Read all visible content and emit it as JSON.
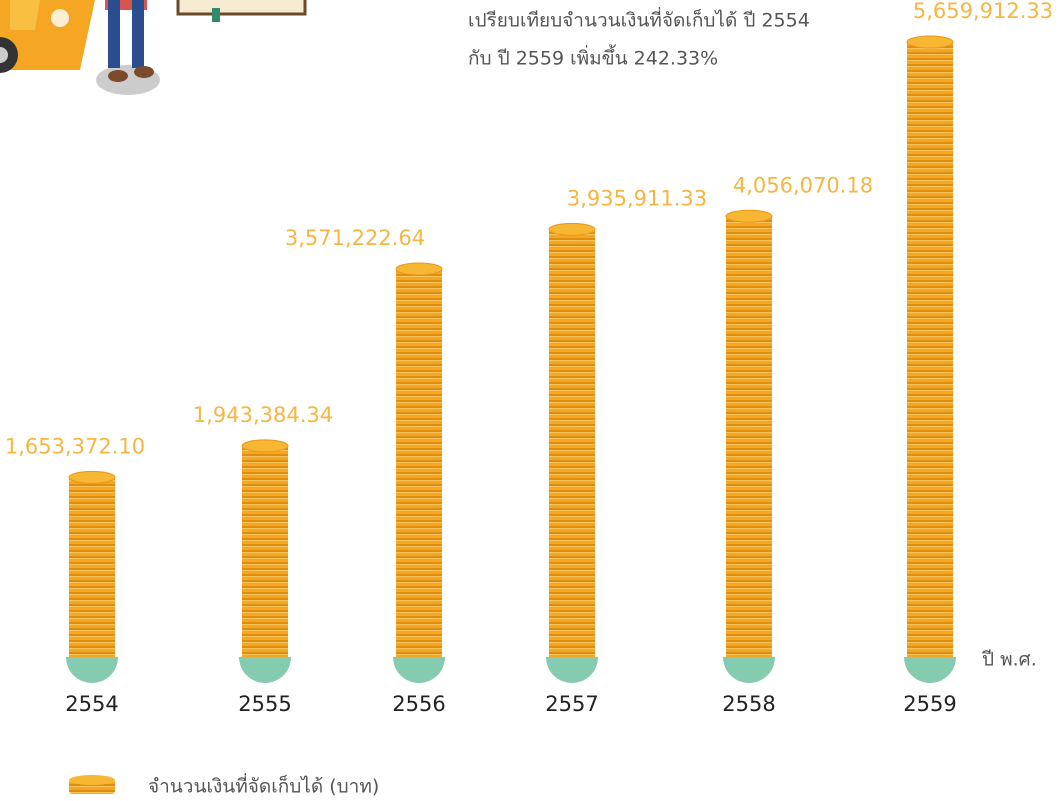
{
  "chart_data": {
    "type": "coin-bar",
    "annotation": [
      "เปรียบเทียบจำนวนเงินที่จัดเก็บได้  ปี  2554",
      "กับ ปี 2559 เพิ่มขึ้น 242.33%"
    ],
    "x_label": "ปี พ.ศ.",
    "categories": [
      "2554",
      "2555",
      "2556",
      "2557",
      "2558",
      "2559"
    ],
    "series": [
      {
        "name": "จำนวนเงินที่จัดเก็บได้ (บาท)",
        "color": "#f5a623",
        "values": [
          1653372.1,
          1943384.34,
          3571222.64,
          3935911.33,
          4056070.18,
          5659912.33
        ],
        "value_labels": [
          "1,653,372.10",
          "1,943,384.34",
          "3,571,222.64",
          "3,935,911.33",
          "4,056,070.18",
          "5,659,912.33"
        ]
      }
    ]
  }
}
